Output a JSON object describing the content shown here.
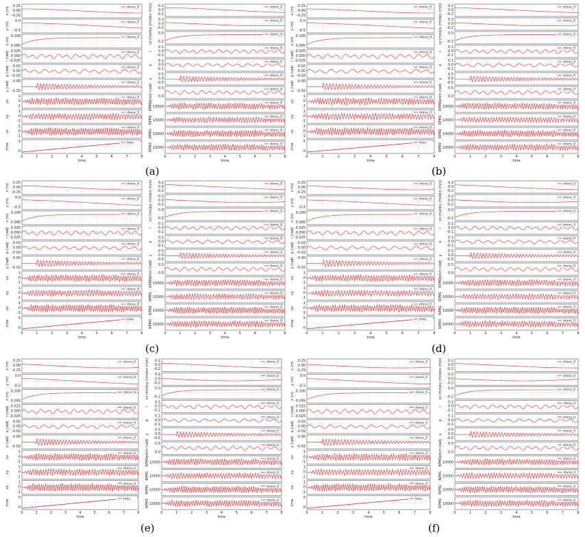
{
  "figure": {
    "panels": [
      "(a)",
      "(b)",
      "(c)",
      "(d)",
      "(e)",
      "(f)"
    ]
  },
  "chart_data": {
    "type": "line",
    "time_range": [
      0,
      8
    ],
    "x_ticks": [
      0,
      1,
      2,
      3,
      4,
      5,
      6,
      7,
      8
    ],
    "xlabel": "time",
    "legend_entry": "drone_0",
    "time_legend": "time",
    "series_color": "#e0262b",
    "left_column": {
      "ylabels": [
        "x (m)",
        "y (m)",
        "z (m)",
        "r (rad)",
        "p (rad)",
        "y (rad)",
        "vx",
        "vy",
        "vz",
        "time"
      ],
      "tick_labels": [
        [
          "0.25",
          "0.00",
          "-0.25"
        ],
        [
          "0.0",
          "-0.5"
        ],
        [
          "0.100",
          "0.095"
        ],
        [
          "0.025",
          "0.000",
          "-0.025"
        ],
        [
          "0.02",
          "0.00",
          "-0.02"
        ],
        [
          "0.00",
          "-0.02"
        ],
        [
          "1",
          "0",
          "-1"
        ],
        [
          "1",
          "0",
          "-1"
        ],
        [
          "1",
          "0",
          "-1"
        ],
        [
          "5",
          "0"
        ]
      ]
    },
    "right_column": {
      "ylabels": [
        "vx (m/s)",
        "vy (m/s)",
        "vz (m/s)",
        "r",
        "p",
        "y",
        "pitch (rad)",
        "RPM0",
        "RPM1",
        "RPM2",
        "RPM3"
      ],
      "tick_labels": [
        [
          "0.2",
          "0.0",
          "-0.2"
        ],
        [
          "0.2",
          "0.0",
          "-0.2"
        ],
        [
          "0.0",
          "-0.2"
        ],
        [
          "0.1",
          "0.0",
          "-0.1"
        ],
        [
          "0.1",
          "0.0",
          "-0.1"
        ],
        [
          "0.5",
          "0.0",
          "-0.5"
        ],
        [
          "0.5",
          "0.0"
        ],
        [
          "10000"
        ],
        [
          "10000"
        ],
        [
          "10000"
        ],
        [
          "10000"
        ]
      ]
    },
    "subplots": [
      {
        "name": "x",
        "shape": "wave",
        "amplitude": 0.3,
        "cycles": 0.5
      },
      {
        "name": "y",
        "shape": "wave",
        "amplitude": 0.45,
        "cycles": 0.35
      },
      {
        "name": "z",
        "shape": "step",
        "amplitude": 0.7,
        "cycles": 0
      },
      {
        "name": "r",
        "shape": "oscillation",
        "amplitude": 0.35,
        "cycles": 14
      },
      {
        "name": "p",
        "shape": "oscillation",
        "amplitude": 0.3,
        "cycles": 12
      },
      {
        "name": "yaw",
        "shape": "decay",
        "amplitude": 0.5,
        "cycles": 40
      },
      {
        "name": "vx",
        "shape": "noise",
        "amplitude": 0.55,
        "cycles": 50
      },
      {
        "name": "vy",
        "shape": "noise",
        "amplitude": 0.5,
        "cycles": 45
      },
      {
        "name": "vz",
        "shape": "noise",
        "amplitude": 0.6,
        "cycles": 55
      },
      {
        "name": "time",
        "shape": "ramp",
        "amplitude": 1,
        "cycles": 0
      }
    ]
  }
}
